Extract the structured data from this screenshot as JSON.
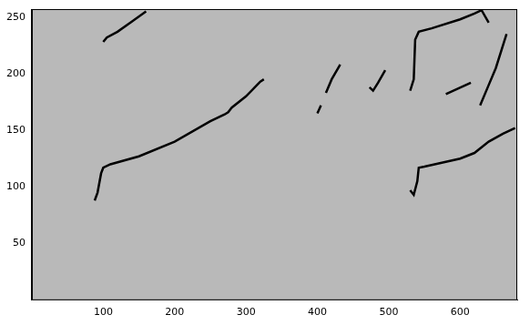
{
  "chart_data": {
    "type": "line",
    "xlim": [
      0,
      680
    ],
    "xticks": [
      100,
      200,
      300,
      400,
      500,
      600
    ],
    "ylim": [
      0,
      257
    ],
    "yticks": [
      50,
      100,
      150,
      200,
      250
    ],
    "grid": false,
    "series": [
      {
        "color": "#000000",
        "x": [
          88,
          92,
          97,
          100,
          110,
          150,
          200,
          250,
          270,
          275,
          280,
          300,
          320,
          325
        ],
        "values": [
          88,
          95,
          112,
          117,
          120,
          127,
          140,
          158,
          164,
          166,
          170,
          180,
          193,
          195
        ]
      },
      {
        "color": "#000000",
        "x": [
          100,
          105,
          120,
          140,
          160
        ],
        "values": [
          228,
          232,
          237,
          246,
          255
        ]
      },
      {
        "color": "#000000",
        "x": [
          400,
          405
        ],
        "values": [
          165,
          172
        ]
      },
      {
        "color": "#000000",
        "x": [
          412,
          420,
          432
        ],
        "values": [
          183,
          195,
          208
        ]
      },
      {
        "color": "#000000",
        "x": [
          473,
          478,
          485,
          495
        ],
        "values": [
          188,
          185,
          192,
          203
        ]
      },
      {
        "color": "#000000",
        "x": [
          530,
          535,
          540,
          542,
          550,
          600,
          620,
          640,
          660,
          677
        ],
        "values": [
          97,
          93,
          105,
          117,
          118,
          125,
          130,
          140,
          147,
          152
        ]
      },
      {
        "color": "#000000",
        "x": [
          530,
          535,
          537,
          542,
          560,
          600,
          620,
          630,
          640
        ],
        "values": [
          185,
          195,
          230,
          237,
          240,
          248,
          253,
          256,
          245
        ]
      },
      {
        "color": "#000000",
        "x": [
          580,
          615
        ],
        "values": [
          182,
          192
        ]
      },
      {
        "color": "#000000",
        "x": [
          628,
          640,
          650,
          665
        ],
        "values": [
          172,
          190,
          205,
          235
        ]
      }
    ]
  }
}
